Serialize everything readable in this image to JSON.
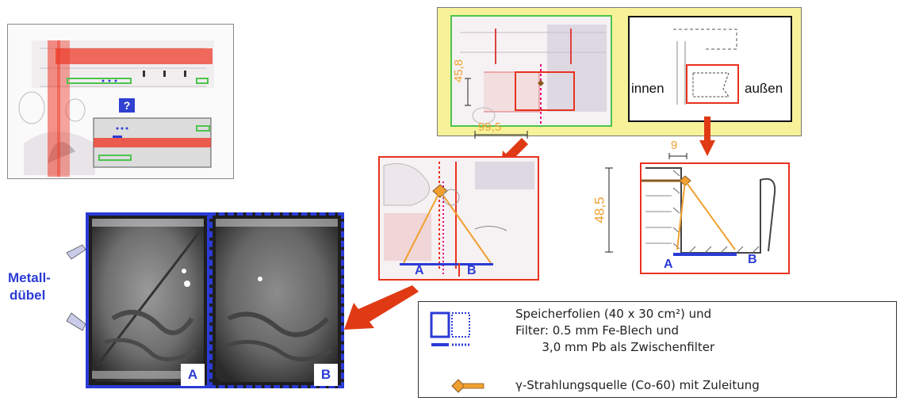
{
  "labels": {
    "question": "?",
    "dim_45_8": "45,8",
    "dim_99_5": "99,5",
    "dim_9": "9",
    "dim_48_5": "48,5",
    "innen": "innen",
    "aussen": "außen",
    "pos_a": "A",
    "pos_b": "B",
    "metall_line1": "Metall-",
    "metall_line2": "dübel"
  },
  "legend": {
    "line1": "Speicherfolien (40 x 30 cm²) und",
    "line2": "Filter: 0.5 mm Fe-Blech und",
    "line3": "       3,0 mm Pb als Zwischenfilter",
    "line4": "γ-Strahlungsquelle (Co-60) mit Zuleitung"
  },
  "colors": {
    "red": "#e8321e",
    "orange": "#f0a030",
    "blue": "#2b3bd6",
    "green": "#4cc44c",
    "yellow_panel": "#f7f29a",
    "arrow": "#e03a14"
  }
}
